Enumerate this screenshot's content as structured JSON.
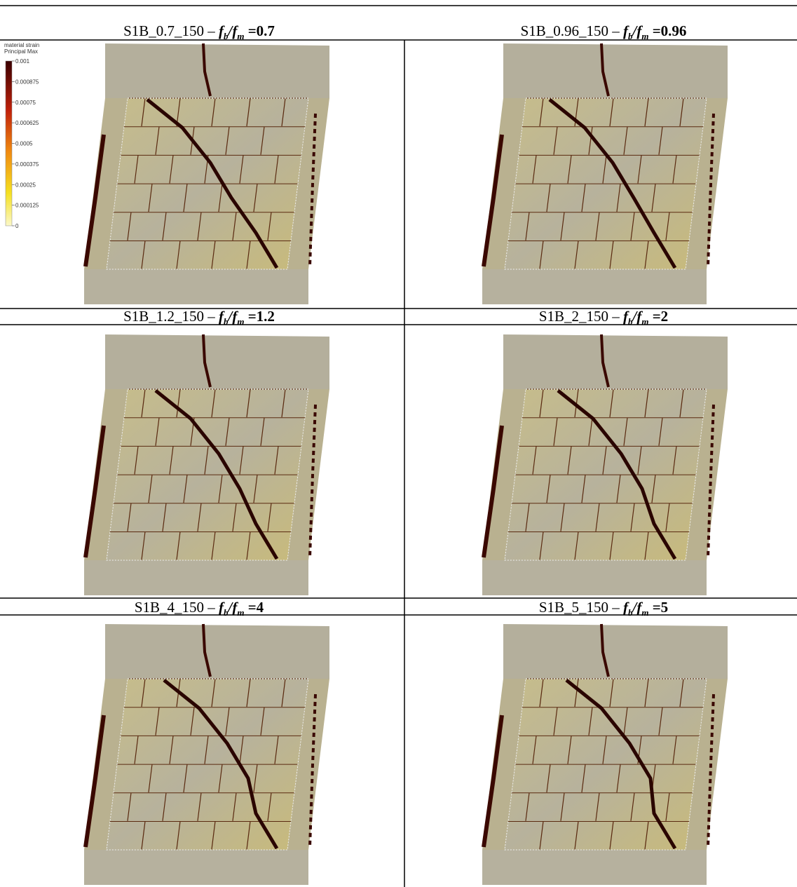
{
  "ratio_symbol": {
    "f": "f",
    "b": "b",
    "slash": "/",
    "m": "m"
  },
  "legend": {
    "title": [
      "material strain",
      "Principal Max"
    ],
    "ticks": [
      "0.001",
      "0.000875",
      "0.00075",
      "0.000625",
      "0.0005",
      "0.000375",
      "0.00025",
      "0.000125",
      "0"
    ]
  },
  "panels": [
    {
      "name": "S1B_0.7_150",
      "dash": "–",
      "value": "=0.7"
    },
    {
      "name": "S1B_0.96_150",
      "dash": "–",
      "value": "=0.96"
    },
    {
      "name": "S1B_1.2_150",
      "dash": "–",
      "value": "=1.2"
    },
    {
      "name": "S1B_2_150",
      "dash": "–",
      "value": "=2"
    },
    {
      "name": "S1B_4_150",
      "dash": "–",
      "value": "=4"
    },
    {
      "name": "S1B_5_150",
      "dash": "–",
      "value": "=5"
    }
  ]
}
